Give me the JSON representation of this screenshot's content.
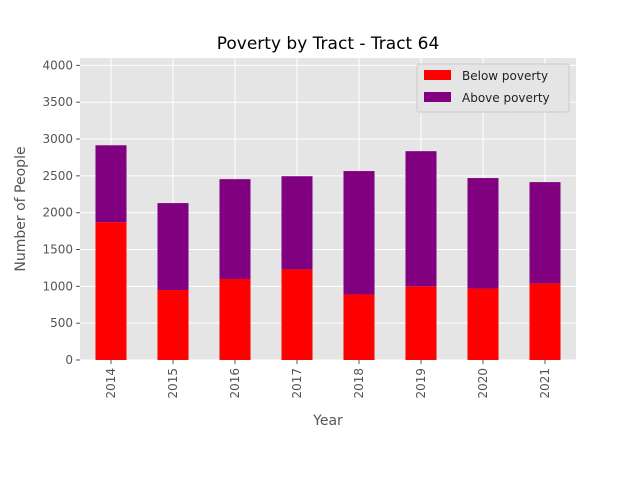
{
  "chart_data": {
    "type": "bar",
    "stacked": true,
    "title": "Poverty by Tract - Tract 64",
    "xlabel": "Year",
    "ylabel": "Number of People",
    "categories": [
      "2014",
      "2015",
      "2016",
      "2017",
      "2018",
      "2019",
      "2020",
      "2021"
    ],
    "series": [
      {
        "name": "Below poverty",
        "color": "#ff0000",
        "values": [
          1870,
          950,
          1100,
          1230,
          890,
          1000,
          970,
          1040
        ]
      },
      {
        "name": "Above poverty",
        "color": "#800080",
        "values": [
          1045,
          1180,
          1355,
          1265,
          1675,
          1835,
          1500,
          1375
        ]
      }
    ],
    "ylim": [
      0,
      4100
    ],
    "yticks": [
      0,
      500,
      1000,
      1500,
      2000,
      2500,
      3000,
      3500,
      4000
    ],
    "grid": true,
    "legend_position": "top-right",
    "background": "#e5e5e5"
  }
}
